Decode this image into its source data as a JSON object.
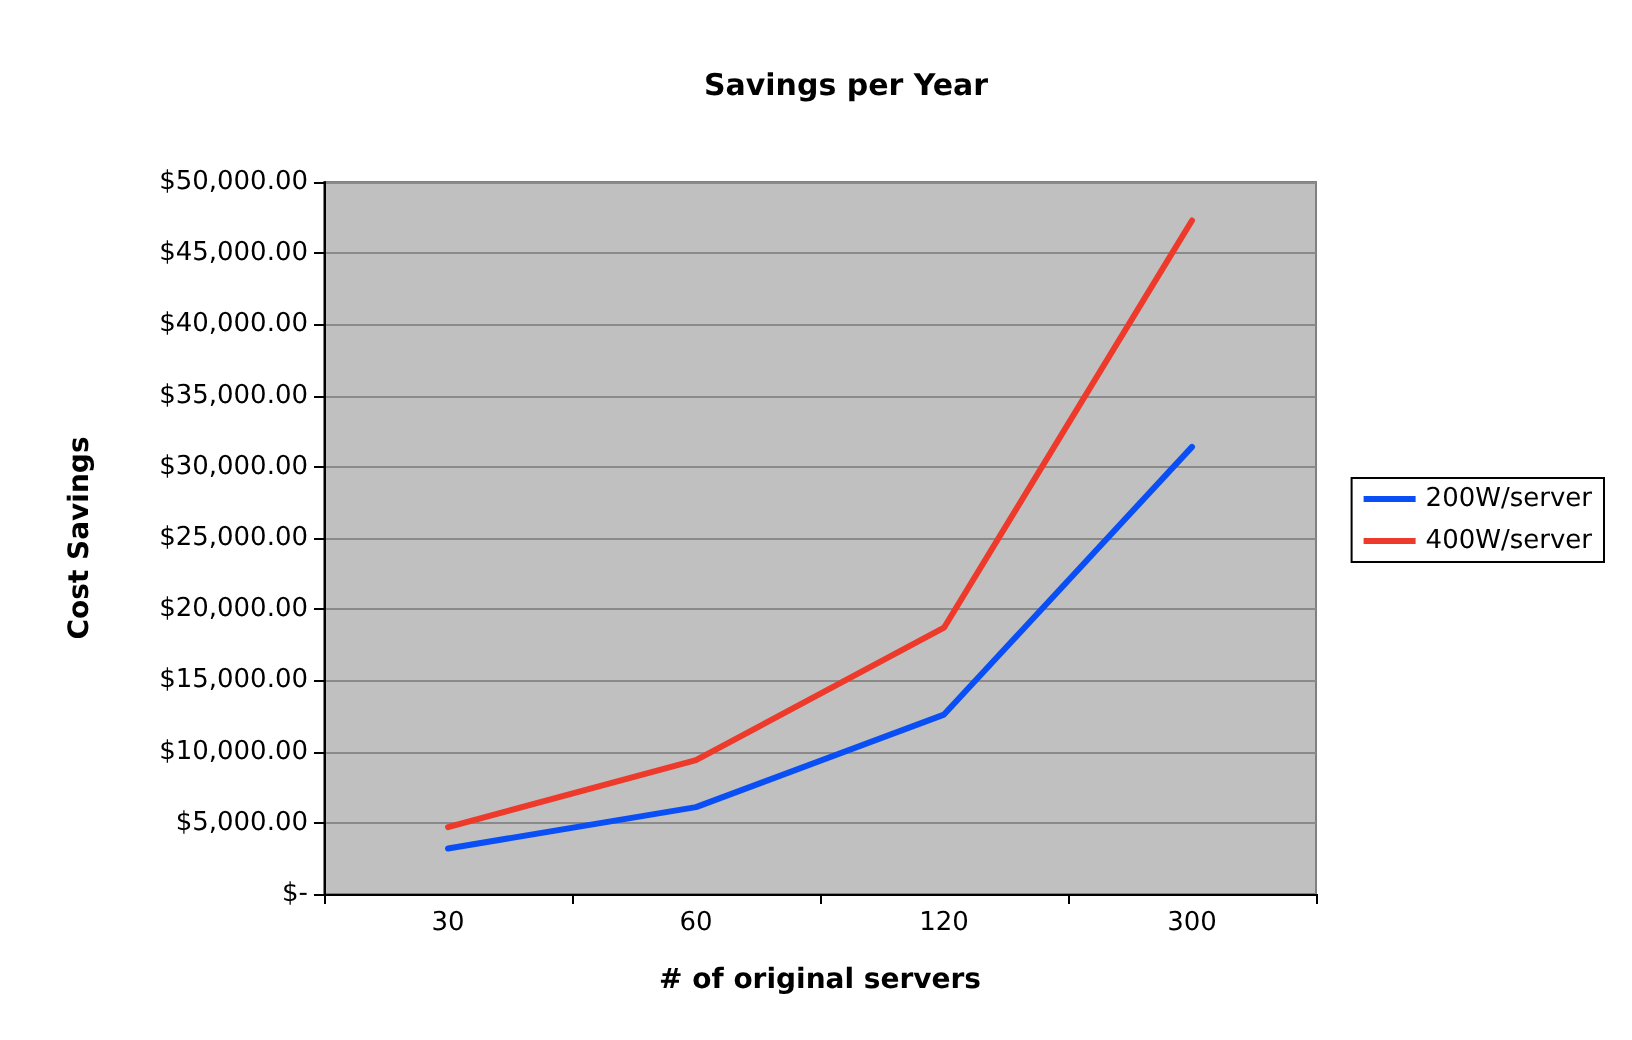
{
  "chart_data": {
    "type": "line",
    "title": "Savings per Year",
    "xlabel": "# of original servers",
    "ylabel": "Cost Savings",
    "categories": [
      "30",
      "60",
      "120",
      "300"
    ],
    "series": [
      {
        "name": "200W/server",
        "color": "#0a4ff5",
        "values": [
          3200,
          6100,
          12600,
          31400
        ]
      },
      {
        "name": "400W/server",
        "color": "#ee3a2a",
        "values": [
          4700,
          9400,
          18700,
          47300
        ]
      }
    ],
    "ylim": [
      0,
      50000
    ],
    "yticks": [
      {
        "value": 0,
        "label": "$-"
      },
      {
        "value": 5000,
        "label": "$5,000.00"
      },
      {
        "value": 10000,
        "label": "$10,000.00"
      },
      {
        "value": 15000,
        "label": "$15,000.00"
      },
      {
        "value": 20000,
        "label": "$20,000.00"
      },
      {
        "value": 25000,
        "label": "$25,000.00"
      },
      {
        "value": 30000,
        "label": "$30,000.00"
      },
      {
        "value": 35000,
        "label": "$35,000.00"
      },
      {
        "value": 40000,
        "label": "$40,000.00"
      },
      {
        "value": 45000,
        "label": "$45,000.00"
      },
      {
        "value": 50000,
        "label": "$50,000.00"
      }
    ],
    "grid": "y",
    "legend": "right",
    "marker": "none",
    "line_style": "solid"
  }
}
